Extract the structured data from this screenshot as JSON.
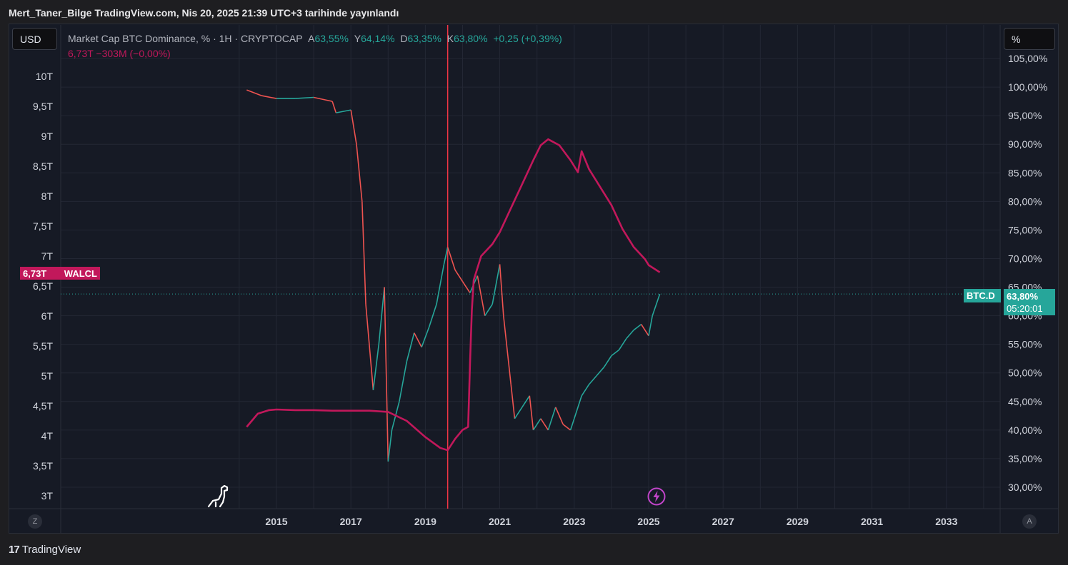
{
  "header": {
    "title": "Mert_Taner_Bilge TradingView.com, Nis 20, 2025 21:39 UTC+3 tarihinde yayınlandı"
  },
  "currency_button": "USD",
  "scale_button": "%",
  "legend": {
    "symbol": "Market Cap BTC Dominance, % · 1H · CRYPTOCAP",
    "a_label": "A",
    "a_value": "63,55%",
    "y_label": "Y",
    "y_value": "64,14%",
    "d_label": "D",
    "d_value": "63,35%",
    "k_label": "K",
    "k_value": "63,80%",
    "change": "+0,25 (+0,39%)",
    "walcl_line": "6,73T  −303M (−0,00%)"
  },
  "tags": {
    "walcl_value": "6,73T",
    "walcl_name": "WALCL",
    "btcd_name": "BTC.D",
    "btcd_value": "63,80%",
    "btcd_timer": "05:20:01"
  },
  "axis_buttons": {
    "left": "Z",
    "right": "A"
  },
  "footer": {
    "brand": "TradingView",
    "logo_mark": "17"
  },
  "colors": {
    "walcl": "#c2185b",
    "btcd_up": "#26a69a",
    "btcd_down": "#ef5350",
    "vertical_line": "#f23645",
    "background": "#161a25",
    "grid": "#232734"
  },
  "chart_data": {
    "type": "line",
    "x_tick_labels": [
      "2015",
      "2017",
      "2019",
      "2021",
      "2023",
      "2025",
      "2027",
      "2029",
      "2031",
      "2033"
    ],
    "left_axis": {
      "series": "WALCL",
      "tick_labels": [
        "10T",
        "9,5T",
        "9T",
        "8,5T",
        "8T",
        "7,5T",
        "7T",
        "6,5T",
        "6T",
        "5,5T",
        "5T",
        "4,5T",
        "4T",
        "3,5T",
        "3T"
      ],
      "ticks": [
        10,
        9.5,
        9,
        8.5,
        8,
        7.5,
        7,
        6.5,
        6,
        5.5,
        5,
        4.5,
        4,
        3.5,
        3
      ]
    },
    "right_axis": {
      "series": "BTC.D",
      "tick_labels": [
        "105,00%",
        "100,00%",
        "95,00%",
        "90,00%",
        "85,00%",
        "80,00%",
        "75,00%",
        "70,00%",
        "65,00%",
        "60,00%",
        "55,00%",
        "50,00%",
        "45,00%",
        "40,00%",
        "35,00%",
        "30,00%"
      ],
      "ticks": [
        105,
        100,
        95,
        90,
        85,
        80,
        75,
        70,
        65,
        60,
        55,
        50,
        45,
        40,
        35,
        30
      ]
    },
    "vertical_marker_year": 2019.6,
    "series": [
      {
        "name": "WALCL",
        "axis": "left",
        "points": [
          [
            2014.2,
            4.15
          ],
          [
            2014.5,
            4.37
          ],
          [
            2014.8,
            4.43
          ],
          [
            2015.0,
            4.44
          ],
          [
            2015.5,
            4.43
          ],
          [
            2016.0,
            4.43
          ],
          [
            2016.5,
            4.42
          ],
          [
            2017.0,
            4.42
          ],
          [
            2017.5,
            4.42
          ],
          [
            2018.0,
            4.4
          ],
          [
            2018.5,
            4.25
          ],
          [
            2019.0,
            3.98
          ],
          [
            2019.4,
            3.8
          ],
          [
            2019.6,
            3.76
          ],
          [
            2019.8,
            3.95
          ],
          [
            2020.0,
            4.1
          ],
          [
            2020.15,
            4.15
          ],
          [
            2020.2,
            5.2
          ],
          [
            2020.25,
            6.1
          ],
          [
            2020.3,
            6.6
          ],
          [
            2020.5,
            7.0
          ],
          [
            2020.8,
            7.2
          ],
          [
            2021.0,
            7.4
          ],
          [
            2021.3,
            7.8
          ],
          [
            2021.6,
            8.2
          ],
          [
            2021.9,
            8.6
          ],
          [
            2022.1,
            8.85
          ],
          [
            2022.3,
            8.95
          ],
          [
            2022.6,
            8.85
          ],
          [
            2022.9,
            8.6
          ],
          [
            2023.1,
            8.4
          ],
          [
            2023.2,
            8.75
          ],
          [
            2023.4,
            8.45
          ],
          [
            2023.7,
            8.15
          ],
          [
            2024.0,
            7.85
          ],
          [
            2024.3,
            7.45
          ],
          [
            2024.6,
            7.15
          ],
          [
            2024.9,
            6.95
          ],
          [
            2025.0,
            6.85
          ],
          [
            2025.3,
            6.73
          ]
        ]
      },
      {
        "name": "BTC.D",
        "axis": "right",
        "points": [
          [
            2014.2,
            99.5
          ],
          [
            2014.6,
            98.5
          ],
          [
            2015.0,
            98.0
          ],
          [
            2015.5,
            98.0
          ],
          [
            2016.0,
            98.2
          ],
          [
            2016.5,
            97.5
          ],
          [
            2016.6,
            95.5
          ],
          [
            2017.0,
            96.0
          ],
          [
            2017.15,
            90.0
          ],
          [
            2017.3,
            80.0
          ],
          [
            2017.4,
            62.0
          ],
          [
            2017.6,
            47.0
          ],
          [
            2017.75,
            55.0
          ],
          [
            2017.9,
            65.0
          ],
          [
            2018.0,
            34.5
          ],
          [
            2018.1,
            40.0
          ],
          [
            2018.3,
            45.0
          ],
          [
            2018.5,
            52.0
          ],
          [
            2018.7,
            57.0
          ],
          [
            2018.9,
            54.5
          ],
          [
            2019.1,
            58.0
          ],
          [
            2019.3,
            62.0
          ],
          [
            2019.5,
            69.0
          ],
          [
            2019.6,
            72.0
          ],
          [
            2019.8,
            68.0
          ],
          [
            2020.0,
            66.0
          ],
          [
            2020.2,
            64.0
          ],
          [
            2020.4,
            67.0
          ],
          [
            2020.6,
            60.0
          ],
          [
            2020.8,
            62.0
          ],
          [
            2021.0,
            69.0
          ],
          [
            2021.1,
            60.0
          ],
          [
            2021.3,
            48.0
          ],
          [
            2021.4,
            42.0
          ],
          [
            2021.6,
            44.0
          ],
          [
            2021.8,
            46.0
          ],
          [
            2021.9,
            40.0
          ],
          [
            2022.1,
            42.0
          ],
          [
            2022.3,
            40.0
          ],
          [
            2022.5,
            44.0
          ],
          [
            2022.7,
            41.0
          ],
          [
            2022.9,
            40.0
          ],
          [
            2023.0,
            42.0
          ],
          [
            2023.2,
            46.0
          ],
          [
            2023.4,
            48.0
          ],
          [
            2023.6,
            49.5
          ],
          [
            2023.8,
            51.0
          ],
          [
            2024.0,
            53.0
          ],
          [
            2024.2,
            54.0
          ],
          [
            2024.4,
            56.0
          ],
          [
            2024.6,
            57.5
          ],
          [
            2024.8,
            58.5
          ],
          [
            2025.0,
            56.5
          ],
          [
            2025.1,
            60.0
          ],
          [
            2025.3,
            63.8
          ]
        ]
      }
    ]
  }
}
